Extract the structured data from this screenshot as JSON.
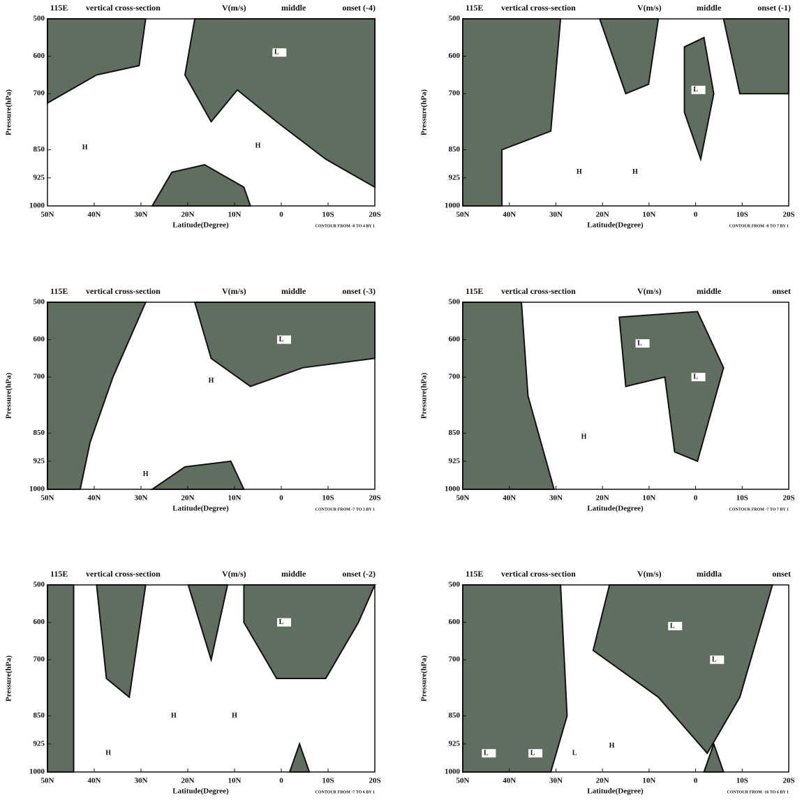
{
  "chart_data": [
    {
      "type": "contour",
      "title": [
        "115E",
        "vertical cross-section",
        "V(m/s)",
        "middle",
        "onset (-4)"
      ],
      "xlabel": "Latitude(Degree)",
      "ylabel": "Pressure(hPa)",
      "note": "CONTOUR FROM -8 TO 4 BY 1",
      "xlim": [
        50,
        -20
      ],
      "ylim": [
        1000,
        500
      ],
      "xticks": [
        {
          "value": 50,
          "label": "50N"
        },
        {
          "value": 40,
          "label": "40N"
        },
        {
          "value": 30,
          "label": "30N"
        },
        {
          "value": 20,
          "label": "20N"
        },
        {
          "value": 10,
          "label": "10N"
        },
        0,
        {
          "value": -10,
          "label": "10S"
        },
        {
          "value": -20,
          "label": "20S"
        }
      ],
      "yticks": [
        500,
        600,
        700,
        850,
        925,
        1000
      ],
      "extrema": [
        {
          "label": "L",
          "x": 1,
          "y": 590
        },
        {
          "label": "H",
          "x": 42,
          "y": 845
        },
        {
          "label": "H",
          "x": 5,
          "y": 840
        }
      ]
    },
    {
      "type": "contour",
      "title": [
        "115E",
        "vertical cross-section",
        "V(m/s)",
        "middle",
        "onset (-1)"
      ],
      "xlabel": "Latitude(Degree)",
      "ylabel": "Pressure(hPa)",
      "note": "CONTOUR FROM -8 TO 7 BY 1",
      "xlim": [
        50,
        -20
      ],
      "ylim": [
        1000,
        500
      ],
      "xticks": [
        {
          "value": 50,
          "label": "50N"
        },
        {
          "value": 40,
          "label": "40N"
        },
        {
          "value": 30,
          "label": "30N"
        },
        {
          "value": 20,
          "label": "20N"
        },
        {
          "value": 10,
          "label": "10N"
        },
        0,
        {
          "value": -10,
          "label": "10S"
        },
        {
          "value": -20,
          "label": "20S"
        }
      ],
      "yticks": [
        500,
        600,
        700,
        850,
        925,
        1000
      ],
      "extrema": [
        {
          "label": "L",
          "x": 0,
          "y": 690
        },
        {
          "label": "H",
          "x": 25,
          "y": 910
        },
        {
          "label": "H",
          "x": 13,
          "y": 910
        }
      ]
    },
    {
      "type": "contour",
      "title": [
        "115E",
        "vertical cross-section",
        "V(m/s)",
        "middle",
        "onset (-3)"
      ],
      "xlabel": "Latitude(Degree)",
      "ylabel": "Pressure(hPa)",
      "note": "CONTOUR FROM -7 TO 3 BY 1",
      "xlim": [
        50,
        -20
      ],
      "ylim": [
        1000,
        500
      ],
      "xticks": [
        {
          "value": 50,
          "label": "50N"
        },
        {
          "value": 40,
          "label": "40N"
        },
        {
          "value": 30,
          "label": "30N"
        },
        {
          "value": 20,
          "label": "20N"
        },
        {
          "value": 10,
          "label": "10N"
        },
        0,
        {
          "value": -10,
          "label": "10S"
        },
        {
          "value": -20,
          "label": "20S"
        }
      ],
      "yticks": [
        500,
        600,
        700,
        850,
        925,
        1000
      ],
      "extrema": [
        {
          "label": "L",
          "x": 0,
          "y": 600
        },
        {
          "label": "H",
          "x": 15,
          "y": 710
        },
        {
          "label": "H",
          "x": 29,
          "y": 960
        }
      ]
    },
    {
      "type": "contour",
      "title": [
        "115E",
        "vertical cross-section",
        "V(m/s)",
        "middle",
        "onset"
      ],
      "xlabel": "Latitude(Degree)",
      "ylabel": "Pressure(hPa)",
      "note": "CONTOUR FROM -7 TO 7 BY 1",
      "xlim": [
        50,
        -20
      ],
      "ylim": [
        1000,
        500
      ],
      "xticks": [
        {
          "value": 50,
          "label": "50N"
        },
        {
          "value": 40,
          "label": "40N"
        },
        {
          "value": 30,
          "label": "30N"
        },
        {
          "value": 20,
          "label": "20N"
        },
        {
          "value": 10,
          "label": "10N"
        },
        0,
        {
          "value": -10,
          "label": "10S"
        },
        {
          "value": -20,
          "label": "20S"
        }
      ],
      "yticks": [
        500,
        600,
        700,
        850,
        925,
        1000
      ],
      "extrema": [
        {
          "label": "L",
          "x": 12,
          "y": 610
        },
        {
          "label": "L",
          "x": 0,
          "y": 700
        },
        {
          "label": "H",
          "x": 24,
          "y": 860
        }
      ]
    },
    {
      "type": "contour",
      "title": [
        "115E",
        "vertical cross-section",
        "V(m/s)",
        "middle",
        "onset (-2)"
      ],
      "xlabel": "Latitude(Degree)",
      "ylabel": "Pressure(hPa)",
      "note": "CONTOUR FROM -7 TO 6 BY 1",
      "xlim": [
        50,
        -20
      ],
      "ylim": [
        1000,
        500
      ],
      "xticks": [
        {
          "value": 50,
          "label": "50N"
        },
        {
          "value": 40,
          "label": "40N"
        },
        {
          "value": 30,
          "label": "30N"
        },
        {
          "value": 20,
          "label": "20N"
        },
        {
          "value": 10,
          "label": "10N"
        },
        0,
        {
          "value": -10,
          "label": "10S"
        },
        {
          "value": -20,
          "label": "20S"
        }
      ],
      "yticks": [
        500,
        600,
        700,
        850,
        925,
        1000
      ],
      "extrema": [
        {
          "label": "L",
          "x": 0,
          "y": 600
        },
        {
          "label": "H",
          "x": 23,
          "y": 850
        },
        {
          "label": "H",
          "x": 10,
          "y": 850
        },
        {
          "label": "H",
          "x": 37,
          "y": 950
        }
      ]
    },
    {
      "type": "contour",
      "title": [
        "115E",
        "vertical cross-section",
        "V(m/s)",
        "middla",
        "onset"
      ],
      "xlabel": "Latitude(Degree)",
      "ylabel": "Pressure(hPa)",
      "note": "CONTOUR FROM -16 TO 6 BY 1",
      "xlim": [
        50,
        -20
      ],
      "ylim": [
        1000,
        500
      ],
      "xticks": [
        {
          "value": 50,
          "label": "50N"
        },
        {
          "value": 40,
          "label": "40N"
        },
        {
          "value": 30,
          "label": "30N"
        },
        {
          "value": 20,
          "label": "20N"
        },
        {
          "value": 10,
          "label": "10N"
        },
        0,
        {
          "value": -10,
          "label": "10S"
        },
        {
          "value": -20,
          "label": "20S"
        }
      ],
      "yticks": [
        500,
        600,
        700,
        850,
        925,
        1000
      ],
      "extrema": [
        {
          "label": "L",
          "x": 5,
          "y": 610
        },
        {
          "label": "L",
          "x": -4,
          "y": 700
        },
        {
          "label": "H",
          "x": 18,
          "y": 930
        },
        {
          "label": "L",
          "x": 45,
          "y": 950
        },
        {
          "label": "L",
          "x": 35,
          "y": 950
        },
        {
          "label": "L",
          "x": 26,
          "y": 950
        }
      ]
    }
  ]
}
